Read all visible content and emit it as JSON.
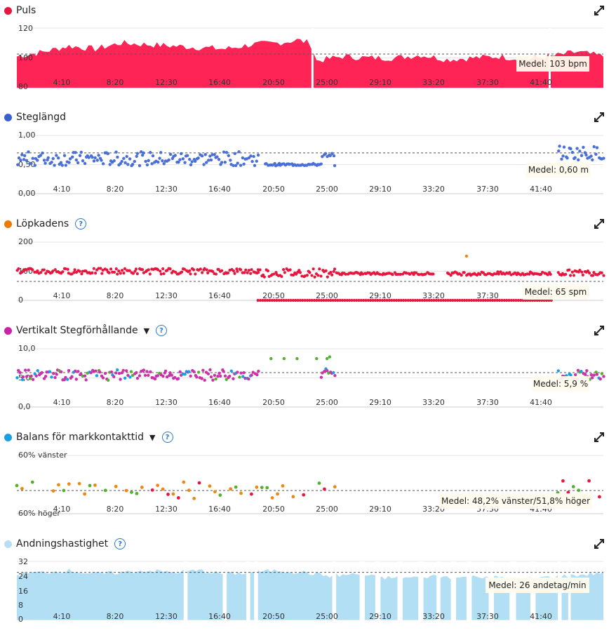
{
  "colors": {
    "heart": "#ff2456",
    "stride": "#4a6fd6",
    "cadence": "#ee8811",
    "vratio": "#cc33aa",
    "gct": "#1aa0e0",
    "resp": "#b3dff4",
    "tooltip_bg": "#fffcee",
    "grid": "#e6e6e6",
    "link": "#2a79c8"
  },
  "x_tick_labels": [
    "4:10",
    "8:20",
    "12:30",
    "16:40",
    "20:50",
    "25:00",
    "29:10",
    "33:20",
    "37:30",
    "41:40"
  ],
  "panels": [
    {
      "title": "Puls",
      "legend_color": "#e8163e",
      "has_help": false,
      "has_dropdown": false,
      "y_labels": [
        "120",
        "100",
        "80"
      ],
      "avg_label": "Medel: 103 bpm",
      "chart_data": {
        "type": "area",
        "x_unit": "min",
        "x_range": [
          0,
          45
        ],
        "ylim": [
          80,
          120
        ],
        "average": 103,
        "x": [
          0,
          2,
          4,
          6,
          8,
          10,
          12,
          14,
          16,
          18,
          20,
          21.5,
          22.5,
          23,
          25,
          27,
          29,
          31,
          33,
          35,
          37,
          39,
          41,
          43,
          45
        ],
        "values": [
          101,
          104,
          108,
          106,
          110,
          109,
          108,
          107,
          106,
          109,
          110,
          112,
          110,
          98,
          101,
          100,
          100,
          102,
          99,
          100,
          101,
          99,
          101,
          104,
          101
        ]
      }
    },
    {
      "title": "Steglängd",
      "legend_color": "#3a5fd0",
      "has_help": false,
      "has_dropdown": false,
      "y_labels": [
        "1,00",
        "0,50",
        "0,00"
      ],
      "avg_label": "Medel: 0,60 m",
      "chart_data": {
        "type": "scatter",
        "x_unit": "min",
        "ylim": [
          0,
          1
        ],
        "average": 0.6,
        "segments": [
          {
            "x0": 0,
            "x1": 18.5,
            "center": 0.6,
            "spread": 0.12
          },
          {
            "x0": 19,
            "x1": 23.3,
            "center": 0.5,
            "spread": 0.02
          },
          {
            "x0": 23.3,
            "x1": 24.5,
            "center": 0.6,
            "spread": 0.12
          },
          {
            "x0": 41.5,
            "x1": 45,
            "center": 0.7,
            "spread": 0.12
          }
        ]
      }
    },
    {
      "title": "Löpkadens",
      "legend_color": "#ee7a00",
      "has_help": true,
      "has_dropdown": false,
      "y_labels": [
        "200",
        "100",
        "0"
      ],
      "avg_label": "Medel: 65 spm",
      "chart_data": {
        "type": "scatter",
        "x_unit": "min",
        "ylim": [
          0,
          200
        ],
        "average": 65,
        "segments": [
          {
            "x0": 0,
            "x1": 18.5,
            "center": 100,
            "spread": 10
          },
          {
            "x0": 18.5,
            "x1": 24.5,
            "center": 95,
            "spread": 15
          },
          {
            "x0": 24.5,
            "x1": 32,
            "center": 92,
            "spread": 4
          },
          {
            "x0": 33,
            "x1": 41,
            "center": 92,
            "spread": 6
          },
          {
            "x0": 41.5,
            "x1": 45,
            "center": 95,
            "spread": 10
          }
        ],
        "zero_band": [
          18.5,
          41
        ],
        "outlier": {
          "x": 34.5,
          "y": 152
        }
      }
    },
    {
      "title": "Vertikalt Stegförhållande",
      "legend_color": "#cc22aa",
      "has_help": true,
      "has_dropdown": true,
      "y_labels": [
        "10,0",
        "5,0",
        "0,0"
      ],
      "avg_label": "Medel: 5,9 %",
      "chart_data": {
        "type": "scatter",
        "x_unit": "min",
        "ylim": [
          0,
          10
        ],
        "average": 5.9,
        "segments": [
          {
            "x0": 0,
            "x1": 18.5,
            "center": 5.5,
            "spread": 0.9
          },
          {
            "x0": 23.3,
            "x1": 24.5,
            "center": 5.8,
            "spread": 0.8
          },
          {
            "x0": 41.5,
            "x1": 45,
            "center": 5.5,
            "spread": 0.8
          }
        ],
        "green_points": [
          [
            19.5,
            8.3
          ],
          [
            20.5,
            8.3
          ],
          [
            21.5,
            8.3
          ],
          [
            23,
            8.3
          ],
          [
            23.8,
            8.3
          ],
          [
            24,
            8.6
          ]
        ],
        "colors": [
          "#cc33aa",
          "#1aa0e0",
          "#56b030"
        ]
      }
    },
    {
      "title": "Balans för markkontakttid",
      "legend_color": "#1aa0e0",
      "has_help": true,
      "has_dropdown": true,
      "y_labels": [
        "60% vänster",
        "60% höger"
      ],
      "avg_label": "Medel: 48,2% vänster/51,8% höger",
      "chart_data": {
        "type": "scatter",
        "x_unit": "min",
        "average_left_pct": 48.2,
        "average_right_pct": 51.8,
        "segments": [
          {
            "x0": 0,
            "x1": 24.5,
            "center": 50,
            "spread": 2
          },
          {
            "x0": 41.5,
            "x1": 45,
            "center": 50.5,
            "spread": 2
          }
        ],
        "colors": [
          "#ee8811",
          "#56b030",
          "#e8163e"
        ]
      }
    },
    {
      "title": "Andningshastighet",
      "legend_color": "#a8d8f0",
      "has_help": true,
      "has_dropdown": false,
      "y_labels": [
        "32",
        "24",
        "16",
        "8",
        "0"
      ],
      "avg_label": "Medel: 26 andetag/min",
      "chart_data": {
        "type": "area",
        "x_unit": "min",
        "ylim": [
          0,
          32
        ],
        "average": 26,
        "x": [
          0,
          2,
          4,
          6,
          8,
          10,
          12,
          14,
          16,
          18,
          20,
          22,
          24,
          26,
          28,
          30,
          32,
          34,
          36,
          38,
          40,
          42,
          44,
          45
        ],
        "values": [
          25,
          26,
          27,
          25,
          26,
          27,
          26,
          27,
          25,
          26,
          27,
          26,
          24,
          25,
          23,
          23,
          24,
          23,
          24,
          22,
          23,
          24,
          25,
          26
        ],
        "gaps": [
          [
            12.8,
            13.1
          ],
          [
            15.8,
            16.1
          ],
          [
            17.6,
            17.9
          ],
          [
            18.2,
            18.5
          ],
          [
            24.2,
            24.5
          ],
          [
            26.3,
            26.7
          ],
          [
            27.5,
            27.9
          ],
          [
            29.2,
            29.6
          ],
          [
            30.8,
            31.2
          ],
          [
            32.2,
            32.5
          ],
          [
            33.3,
            33.7
          ],
          [
            34.5,
            34.9
          ],
          [
            36.2,
            36.6
          ],
          [
            37.8,
            38.3
          ],
          [
            39.4,
            39.8
          ],
          [
            41.5,
            41.8
          ],
          [
            42.3,
            42.5
          ]
        ]
      }
    }
  ]
}
